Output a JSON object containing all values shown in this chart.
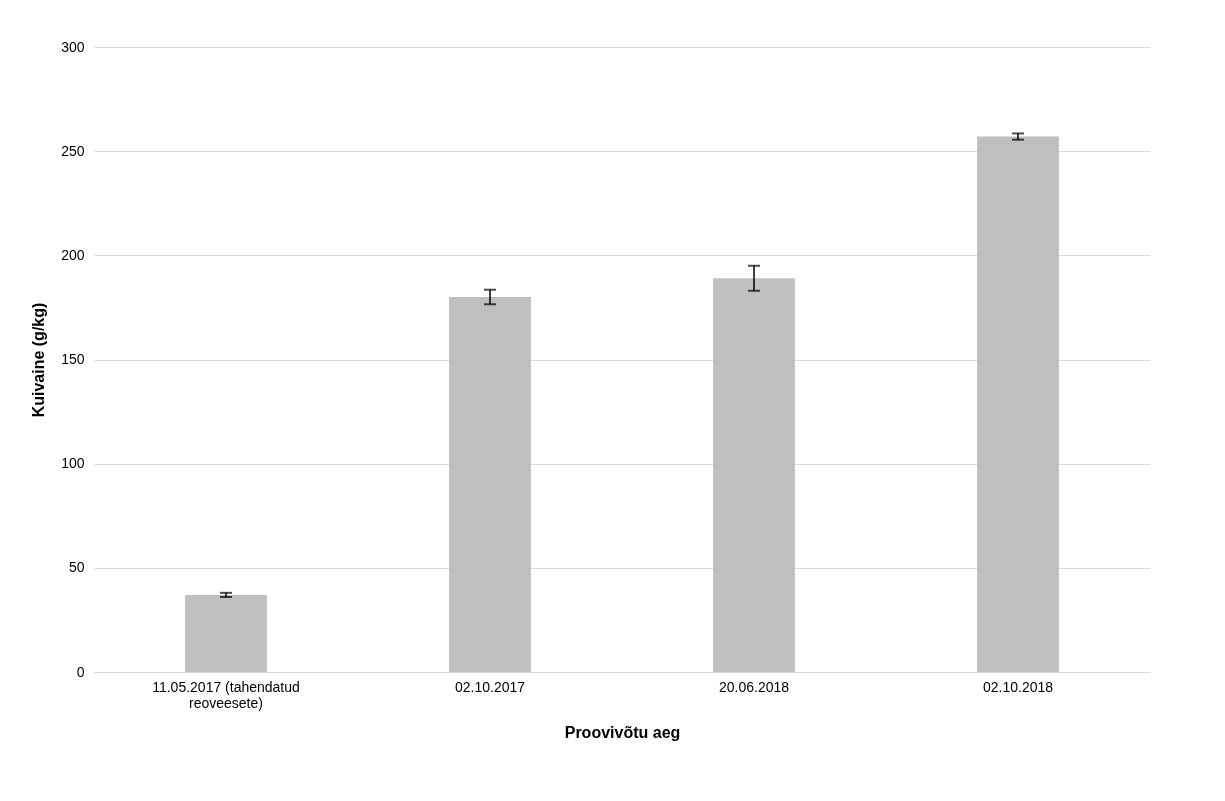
{
  "chart_data": {
    "type": "bar",
    "xlabel": "Proovivõtu aeg",
    "ylabel": "Kuivaine (g/kg)",
    "categories": [
      "11.05.2017 (tahendatud reoveesete)",
      "02.10.2017",
      "20.06.2018",
      "02.10.2018"
    ],
    "values": [
      37,
      180,
      189,
      257
    ],
    "errors": [
      1,
      3.5,
      6,
      1.5
    ],
    "color": "#bfbfbf",
    "ylim": [
      0,
      300
    ],
    "yticks": [
      0,
      50,
      100,
      150,
      200,
      250,
      300
    ],
    "grid": "y"
  }
}
